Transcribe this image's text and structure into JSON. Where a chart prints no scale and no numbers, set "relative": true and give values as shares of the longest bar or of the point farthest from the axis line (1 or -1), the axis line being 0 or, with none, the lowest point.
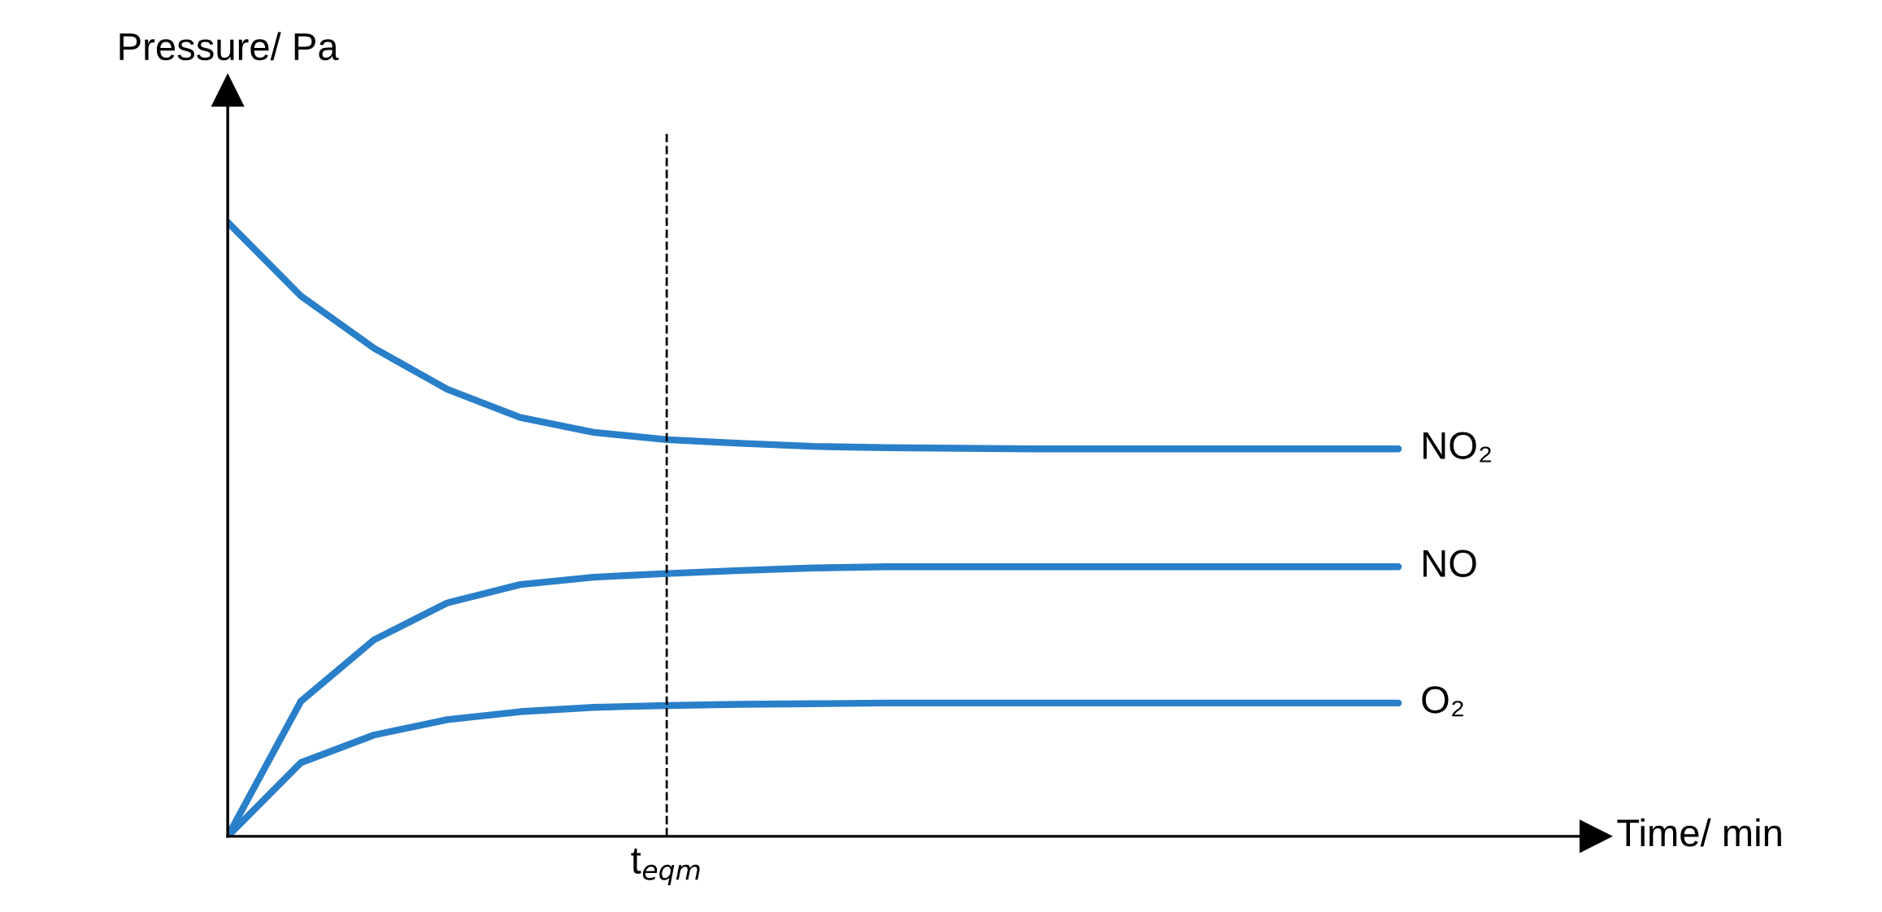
{
  "chart_data": {
    "type": "line",
    "relative": true,
    "xlabel": "Time/ min",
    "ylabel": "Pressure/ Pa",
    "categories": [
      null,
      null,
      null,
      null,
      null,
      null,
      null,
      null,
      null,
      null,
      null,
      null,
      null,
      null,
      null,
      null,
      null
    ],
    "series": [
      {
        "name": "NO₂",
        "color": "#2a7fc9",
        "values": [
          1.0,
          0.88,
          0.795,
          0.728,
          0.682,
          0.658,
          0.646,
          0.64,
          0.635,
          0.633,
          0.632,
          0.631,
          0.631,
          0.631,
          0.631,
          0.631,
          0.631
        ]
      },
      {
        "name": "NO",
        "color": "#2a7fc9",
        "values": [
          0,
          0.22,
          0.32,
          0.38,
          0.41,
          0.422,
          0.428,
          0.433,
          0.437,
          0.439,
          0.439,
          0.439,
          0.439,
          0.439,
          0.439,
          0.439,
          0.439
        ]
      },
      {
        "name": "O₂",
        "color": "#2a7fc9",
        "values": [
          0,
          0.12,
          0.165,
          0.19,
          0.203,
          0.21,
          0.213,
          0.215,
          0.216,
          0.217,
          0.217,
          0.217,
          0.217,
          0.217,
          0.217,
          0.217,
          0.217
        ]
      }
    ],
    "annotations": [
      "t$_{eqm}$"
    ],
    "grid": false,
    "legend": false,
    "marker": "none",
    "line_style": "solid"
  }
}
